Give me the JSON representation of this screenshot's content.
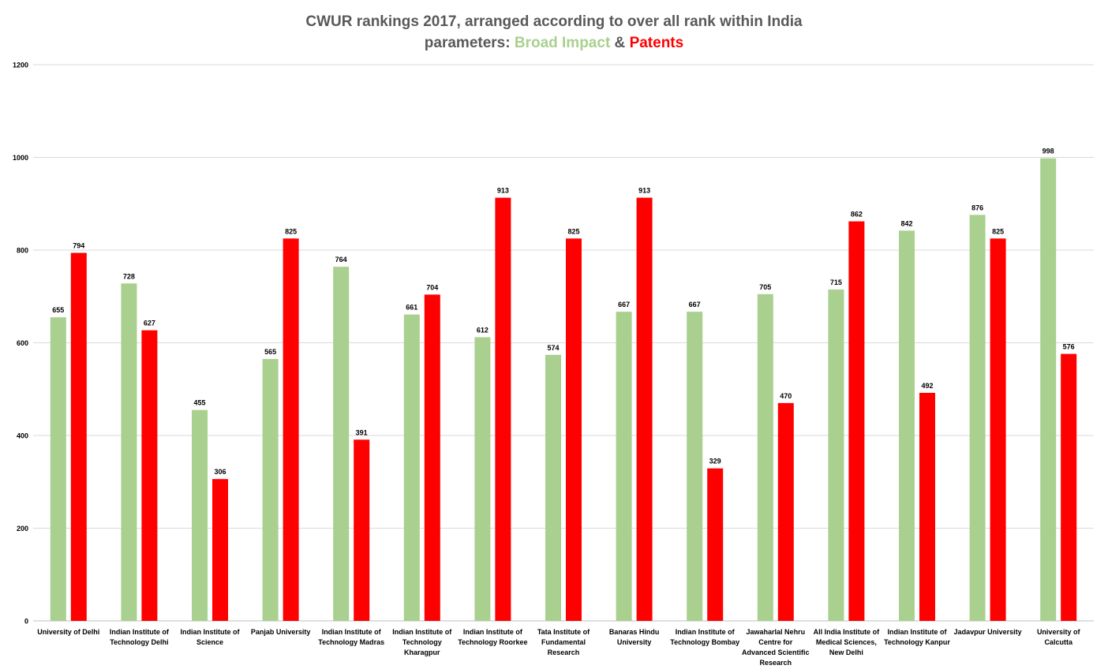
{
  "chart_data": {
    "type": "bar",
    "title": {
      "line1": "CWUR rankings 2017, arranged according to over all rank within India",
      "line2_prefix": "parameters: ",
      "line2_series1": "Broad Impact",
      "line2_joiner": " & ",
      "line2_series2": "Patents"
    },
    "categories": [
      [
        "University of Delhi"
      ],
      [
        "Indian Institute of",
        "Technology Delhi"
      ],
      [
        "Indian Institute of",
        "Science"
      ],
      [
        "Panjab University"
      ],
      [
        "Indian Institute of",
        "Technology Madras"
      ],
      [
        "Indian Institute of",
        "Technology",
        "Kharagpur"
      ],
      [
        "Indian Institute of",
        "Technology Roorkee"
      ],
      [
        "Tata Institute of",
        "Fundamental",
        "Research"
      ],
      [
        "Banaras Hindu",
        "University"
      ],
      [
        "Indian Institute of",
        "Technology Bombay"
      ],
      [
        "Jawaharlal Nehru",
        "Centre for",
        "Advanced Scientific",
        "Research"
      ],
      [
        "All India Institute of",
        "Medical Sciences,",
        "New Delhi"
      ],
      [
        "Indian Institute of",
        "Technology Kanpur"
      ],
      [
        "Jadavpur University"
      ],
      [
        "University of",
        "Calcutta"
      ]
    ],
    "series": [
      {
        "name": "Broad Impact",
        "color": "#a9d08e",
        "values": [
          655,
          728,
          455,
          565,
          764,
          661,
          612,
          574,
          667,
          667,
          705,
          715,
          842,
          876,
          998
        ]
      },
      {
        "name": "Patents",
        "color": "#ff0000",
        "values": [
          794,
          627,
          306,
          825,
          391,
          704,
          913,
          825,
          913,
          329,
          470,
          862,
          492,
          825,
          576
        ]
      }
    ],
    "ylim": [
      0,
      1200
    ],
    "yticks": [
      0,
      200,
      400,
      600,
      800,
      1000,
      1200
    ],
    "grid": true,
    "legend": "none",
    "xlabel": "",
    "ylabel": ""
  }
}
